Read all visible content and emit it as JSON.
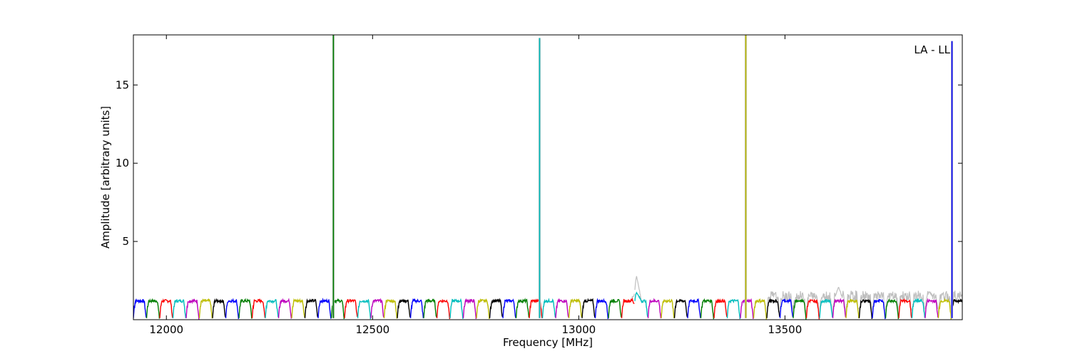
{
  "chart_data": {
    "type": "line",
    "xlabel": "Frequency [MHz]",
    "ylabel": "Amplitude [arbitrary units]",
    "annotation": "LA - LL",
    "xlim": [
      11920,
      13930
    ],
    "ylim": [
      0,
      18.2
    ],
    "xticks": [
      12000,
      12500,
      13000,
      13500
    ],
    "yticks": [
      5,
      10,
      15
    ],
    "grid": false,
    "subband_width_mhz": 32,
    "subband_start_mhz": 11920,
    "series_colors": [
      "#0000ff",
      "#008000",
      "#ff0000",
      "#00bfbf",
      "#bf00bf",
      "#bfbf00",
      "#000000"
    ],
    "background_color": "#bfbfbf",
    "subband_peak_amplitude": 1.2,
    "subband_edge_amplitude": 0.1,
    "spikes": [
      {
        "x": 12405,
        "y": 18.2,
        "color": "#008000"
      },
      {
        "x": 12905,
        "y": 18.0,
        "color": "#00bfbf"
      },
      {
        "x": 13405,
        "y": 18.2,
        "color": "#bfbf00"
      },
      {
        "x": 13905,
        "y": 17.8,
        "color": "#0000ff"
      }
    ],
    "background_bumps": [
      {
        "x": 13140,
        "y": 2.8
      },
      {
        "x": 13630,
        "y": 2.1
      },
      {
        "x": 13850,
        "y": 1.8
      }
    ]
  }
}
